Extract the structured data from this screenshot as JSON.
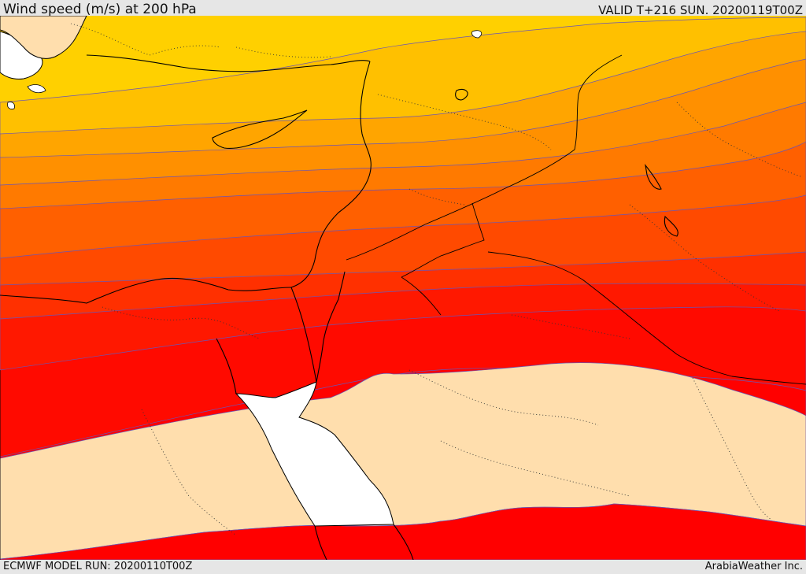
{
  "header": {
    "title": "Wind speed (m/s) at 200 hPa",
    "valid": "VALID T+216 SUN. 20200119T00Z"
  },
  "footer": {
    "model_run": "ECMWF MODEL RUN: 20200110T00Z",
    "credit": "ArabiaWeather Inc."
  },
  "map": {
    "variable": "wind speed",
    "level": "200 hPa",
    "units": "m/s",
    "fill_colors_north_to_south": [
      "#ffff00",
      "#ffe000",
      "#ffc000",
      "#ffa000",
      "#ff8000",
      "#ff6000",
      "#ff4000",
      "#ff2000",
      "#ff0000",
      "#ffdead",
      "#ff0000"
    ],
    "sea_color": "#ffffff",
    "land_low_wind_color": "#ffdead"
  }
}
